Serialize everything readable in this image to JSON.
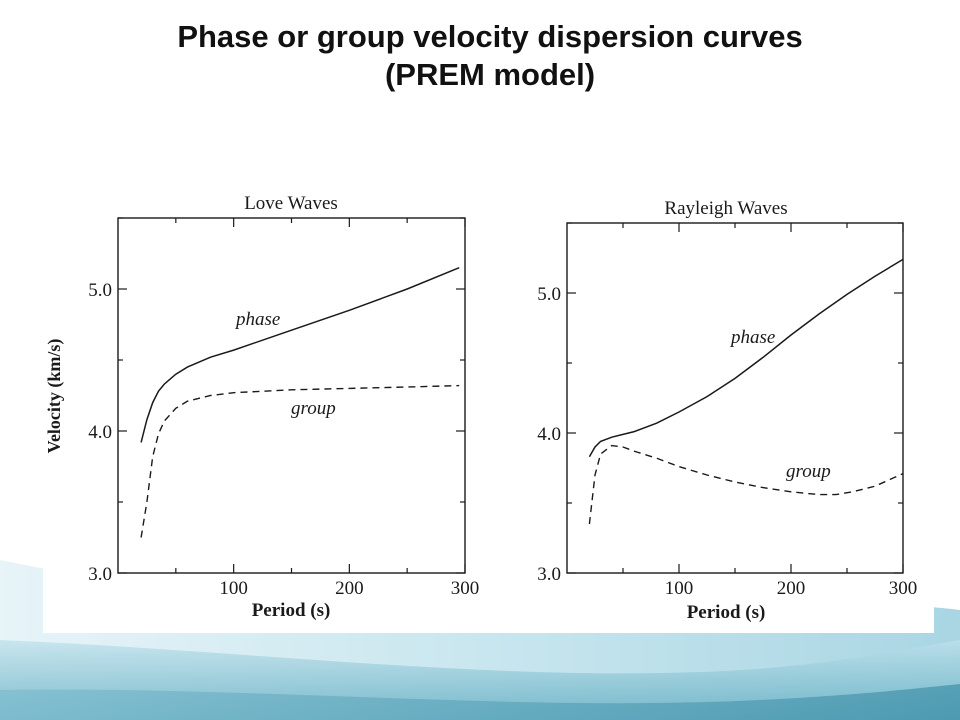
{
  "slide": {
    "title_line1": "Phase or group velocity dispersion curves",
    "title_line2": "(PREM model)"
  },
  "colors": {
    "ink": "#1a1a1a",
    "wave_light": "#d6edf3",
    "wave_mid": "#9fd0de",
    "wave_dark": "#5aa9be"
  },
  "chart_data": [
    {
      "type": "line",
      "title": "Love Waves",
      "xlabel": "Period (s)",
      "ylabel": "Velocity (km/s)",
      "xlim": [
        0,
        300
      ],
      "ylim": [
        3.0,
        5.5
      ],
      "xticks": [
        100,
        200,
        300
      ],
      "xtick_labels": [
        "100",
        "200",
        "300"
      ],
      "yticks": [
        3.0,
        4.0,
        5.0
      ],
      "ytick_labels": [
        "3.0",
        "4.0",
        "5.0"
      ],
      "grid": false,
      "series": [
        {
          "name": "phase",
          "style": "solid",
          "x": [
            20,
            25,
            30,
            35,
            40,
            50,
            60,
            80,
            100,
            150,
            200,
            250,
            295
          ],
          "y": [
            3.92,
            4.08,
            4.2,
            4.28,
            4.33,
            4.4,
            4.45,
            4.52,
            4.57,
            4.71,
            4.85,
            5.0,
            5.15
          ]
        },
        {
          "name": "group",
          "style": "dashed",
          "x": [
            20,
            25,
            30,
            35,
            40,
            50,
            60,
            80,
            100,
            150,
            200,
            250,
            295
          ],
          "y": [
            3.25,
            3.5,
            3.82,
            3.98,
            4.07,
            4.16,
            4.21,
            4.25,
            4.27,
            4.29,
            4.3,
            4.31,
            4.32
          ]
        }
      ]
    },
    {
      "type": "line",
      "title": "Rayleigh Waves",
      "xlabel": "Period (s)",
      "ylabel": "",
      "xlim": [
        0,
        300
      ],
      "ylim": [
        3.0,
        5.5
      ],
      "xticks": [
        100,
        200,
        300
      ],
      "xtick_labels": [
        "100",
        "200",
        "300"
      ],
      "yticks": [
        3.0,
        4.0,
        5.0
      ],
      "ytick_labels": [
        "3.0",
        "4.0",
        "5.0"
      ],
      "grid": false,
      "series": [
        {
          "name": "phase",
          "style": "solid",
          "x": [
            20,
            25,
            30,
            40,
            50,
            60,
            80,
            100,
            125,
            150,
            175,
            200,
            225,
            250,
            275,
            300
          ],
          "y": [
            3.83,
            3.9,
            3.94,
            3.97,
            3.99,
            4.01,
            4.07,
            4.15,
            4.26,
            4.39,
            4.54,
            4.7,
            4.85,
            4.99,
            5.12,
            5.24
          ]
        },
        {
          "name": "group",
          "style": "dashed",
          "x": [
            20,
            25,
            30,
            40,
            50,
            60,
            80,
            100,
            125,
            150,
            175,
            200,
            225,
            240,
            255,
            275,
            300
          ],
          "y": [
            3.35,
            3.7,
            3.85,
            3.91,
            3.9,
            3.87,
            3.82,
            3.76,
            3.7,
            3.65,
            3.61,
            3.58,
            3.56,
            3.56,
            3.58,
            3.62,
            3.71
          ]
        }
      ]
    }
  ]
}
